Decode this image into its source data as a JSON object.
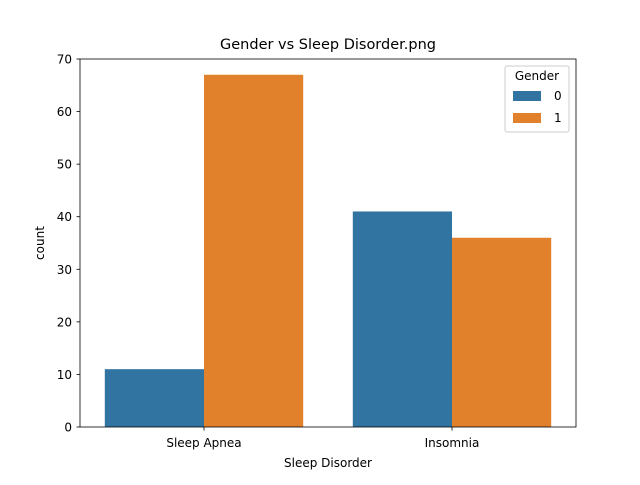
{
  "chart_data": {
    "type": "bar",
    "title": "Gender vs Sleep Disorder.png",
    "xlabel": "Sleep Disorder",
    "ylabel": "count",
    "categories": [
      "Sleep Apnea",
      "Insomnia"
    ],
    "series": [
      {
        "name": "0",
        "values": [
          11,
          41
        ],
        "color": "#3274a1"
      },
      {
        "name": "1",
        "values": [
          67,
          36
        ],
        "color": "#e1812c"
      }
    ],
    "ylim": [
      0,
      70
    ],
    "yticks": [
      0,
      10,
      20,
      30,
      40,
      50,
      60,
      70
    ],
    "legend": {
      "title": "Gender",
      "position": "top-right"
    },
    "grid": false
  }
}
